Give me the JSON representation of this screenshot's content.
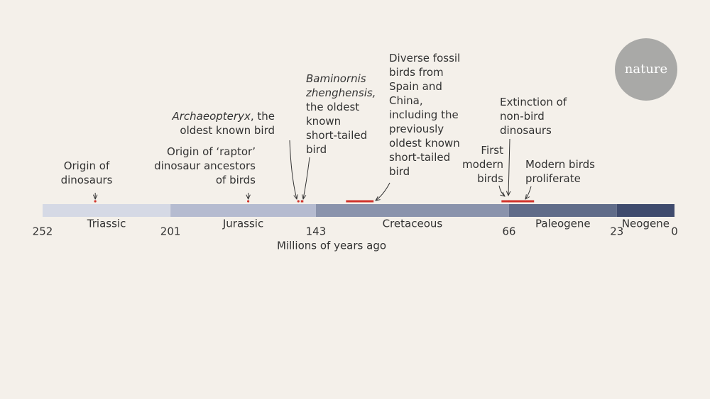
{
  "logo": "nature",
  "chart_data": {
    "type": "timeline",
    "x_label": "Millions of years ago",
    "xlim": [
      252,
      0
    ],
    "xticks": [
      252,
      201,
      143,
      66,
      23,
      0
    ],
    "periods": [
      {
        "name": "Triassic",
        "start": 252,
        "end": 201,
        "color": "#d5d9e5"
      },
      {
        "name": "Jurassic",
        "start": 201,
        "end": 143,
        "color": "#b5bbd0"
      },
      {
        "name": "Cretaceous",
        "start": 143,
        "end": 66,
        "color": "#8a93ac"
      },
      {
        "name": "Paleogene",
        "start": 66,
        "end": 23,
        "color": "#606c89"
      },
      {
        "name": "Neogene",
        "start": 23,
        "end": 0,
        "color": "#3f4b6d"
      }
    ],
    "event_color": "#d0342c",
    "events": [
      {
        "lines": [
          [
            "Origin of"
          ],
          [
            "dinosaurs"
          ]
        ],
        "value": 231
      },
      {
        "lines": [
          [
            "Origin of ‘raptor’"
          ],
          [
            "dinosaur ancestors"
          ],
          [
            "of birds"
          ]
        ],
        "value": 170
      },
      {
        "lines": [
          [
            {
              "text": "Archaeopteryx",
              "style": "italic"
            },
            ", the"
          ],
          [
            "oldest known bird"
          ]
        ],
        "value": 150
      },
      {
        "lines": [
          [
            {
              "text": "Baminornis",
              "style": "italic"
            }
          ],
          [
            {
              "text": "zhenghensis,",
              "style": "italic"
            }
          ],
          [
            "the oldest"
          ],
          [
            "known"
          ],
          [
            "short-tailed"
          ],
          [
            "bird"
          ]
        ],
        "start": 149,
        "end": 148
      },
      {
        "lines": [
          [
            "Diverse fossil"
          ],
          [
            "birds from"
          ],
          [
            "Spain and"
          ],
          [
            "China,"
          ],
          [
            "including the"
          ],
          [
            "previously"
          ],
          [
            "oldest known"
          ],
          [
            "short-tailed"
          ],
          [
            "bird"
          ]
        ],
        "start": 131,
        "end": 120
      },
      {
        "lines": [
          [
            "First"
          ],
          [
            "modern"
          ],
          [
            "birds"
          ]
        ],
        "start": 69,
        "end": 66
      },
      {
        "lines": [
          [
            "Extinction of"
          ],
          [
            "non-bird"
          ],
          [
            "dinosaurs"
          ]
        ],
        "value": 66
      },
      {
        "lines": [
          [
            "Modern birds"
          ],
          [
            "proliferate"
          ]
        ],
        "start": 66,
        "end": 56
      }
    ]
  }
}
